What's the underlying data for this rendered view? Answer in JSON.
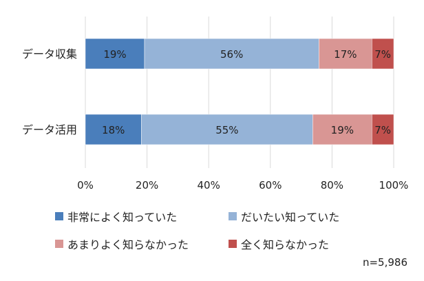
{
  "chart_data": {
    "type": "bar",
    "orientation": "horizontal",
    "stacked": true,
    "categories": [
      "データ収集",
      "データ活用"
    ],
    "series": [
      {
        "name": "非常によく知っていた",
        "values": [
          19,
          18
        ],
        "labels": [
          "19%",
          "18%"
        ],
        "color": "#4a7ebb"
      },
      {
        "name": "だいたい知っていた",
        "values": [
          56,
          55
        ],
        "labels": [
          "56%",
          "55%"
        ],
        "color": "#95b3d7"
      },
      {
        "name": "あまりよく知らなかった",
        "values": [
          17,
          19
        ],
        "labels": [
          "17%",
          "19%"
        ],
        "color": "#d99694"
      },
      {
        "name": "全く知らなかった",
        "values": [
          7,
          7
        ],
        "labels": [
          "7%",
          "7%"
        ],
        "color": "#c0504d"
      }
    ],
    "xticks": [
      "0%",
      "20%",
      "40%",
      "60%",
      "80%",
      "100%"
    ],
    "xlim": [
      0,
      100
    ],
    "grid": true,
    "legend_position": "bottom",
    "note": "n=5,986"
  }
}
